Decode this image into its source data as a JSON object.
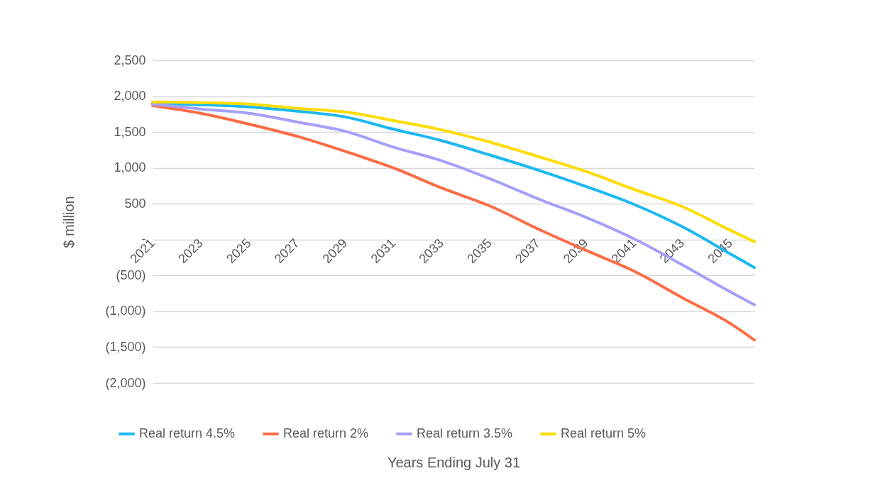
{
  "chart_data": {
    "type": "line",
    "xlabel": "Years Ending July 31",
    "ylabel": "$ million",
    "x": [
      2021,
      2023,
      2025,
      2027,
      2029,
      2031,
      2033,
      2035,
      2037,
      2039,
      2041,
      2043,
      2045,
      2046
    ],
    "series": [
      {
        "name": "Real return 4.5%",
        "color": "#1cb8f2",
        "values": [
          1900,
          1880,
          1850,
          1790,
          1710,
          1540,
          1380,
          1180,
          970,
          740,
          490,
          180,
          -200,
          -390
        ]
      },
      {
        "name": "Real return 2%",
        "color": "#fd6c45",
        "values": [
          1870,
          1760,
          1610,
          1440,
          1230,
          1000,
          720,
          470,
          150,
          -150,
          -440,
          -810,
          -1170,
          -1400
        ]
      },
      {
        "name": "Real return 3.5%",
        "color": "#a5a0fb",
        "values": [
          1890,
          1820,
          1760,
          1640,
          1510,
          1290,
          1100,
          850,
          570,
          310,
          10,
          -350,
          -730,
          -910
        ]
      },
      {
        "name": "Real return 5%",
        "color": "#fedc00",
        "values": [
          1920,
          1910,
          1890,
          1830,
          1780,
          1660,
          1530,
          1360,
          1160,
          950,
          700,
          460,
          130,
          -30
        ]
      }
    ],
    "xlim": [
      2021,
      2046
    ],
    "xticks": [
      2021,
      2023,
      2025,
      2027,
      2029,
      2031,
      2033,
      2035,
      2037,
      2039,
      2041,
      2043,
      2045
    ],
    "ylim": [
      -2000,
      2500
    ],
    "yticks": [
      {
        "value": -2000,
        "label": "(2,000)"
      },
      {
        "value": -1500,
        "label": "(1,500)"
      },
      {
        "value": -1000,
        "label": "(1,000)"
      },
      {
        "value": -500,
        "label": "(500)"
      },
      {
        "value": 0,
        "label": "-"
      },
      {
        "value": 500,
        "label": "500"
      },
      {
        "value": 1000,
        "label": "1,000"
      },
      {
        "value": 1500,
        "label": "1,500"
      },
      {
        "value": 2000,
        "label": "2,000"
      },
      {
        "value": 2500,
        "label": "2,500"
      }
    ],
    "grid": "y",
    "legend": "bottom",
    "marker": "none",
    "line_style": "solid"
  }
}
